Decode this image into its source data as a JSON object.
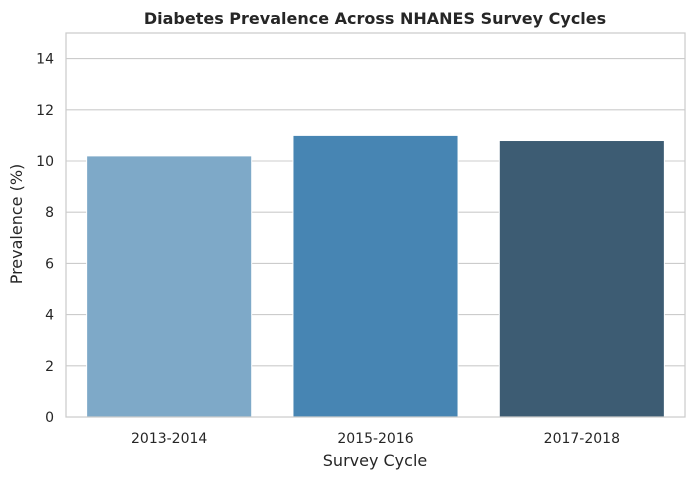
{
  "chart_data": {
    "type": "bar",
    "title": "Diabetes Prevalence Across NHANES Survey Cycles",
    "xlabel": "Survey Cycle",
    "ylabel": "Prevalence (%)",
    "categories": [
      "2013-2014",
      "2015-2016",
      "2017-2018"
    ],
    "values": [
      10.2,
      11.0,
      10.8
    ],
    "ylim": [
      0,
      15
    ],
    "yticks": [
      0,
      2,
      4,
      6,
      8,
      10,
      12,
      14
    ],
    "grid": true,
    "colors": [
      "#7ea9c8",
      "#4785b3",
      "#3d5c73"
    ]
  }
}
